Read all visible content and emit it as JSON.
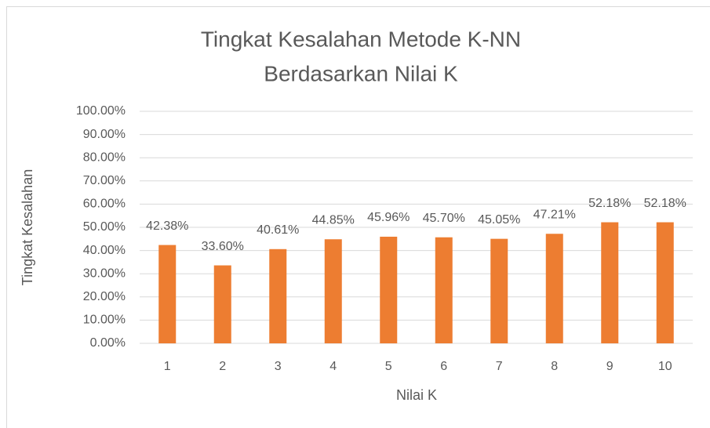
{
  "chart_data": {
    "type": "bar",
    "title": [
      "Tingkat Kesalahan Metode K-NN",
      "Berdasarkan Nilai K"
    ],
    "x_label": "Nilai K",
    "y_label": "Tingkat Kesalahan",
    "categories": [
      "1",
      "2",
      "3",
      "4",
      "5",
      "6",
      "7",
      "8",
      "9",
      "10"
    ],
    "values": [
      42.38,
      33.6,
      40.61,
      44.85,
      45.96,
      45.7,
      45.05,
      47.21,
      52.18,
      52.18
    ],
    "value_labels": [
      "42.38%",
      "33.60%",
      "40.61%",
      "44.85%",
      "45.96%",
      "45.70%",
      "45.05%",
      "47.21%",
      "52.18%",
      "52.18%"
    ],
    "color": "#ed7d31",
    "ylim": [
      0,
      100
    ],
    "yticks": [
      {
        "value": 0,
        "label": "0.00%"
      },
      {
        "value": 10,
        "label": "10.00%"
      },
      {
        "value": 20,
        "label": "20.00%"
      },
      {
        "value": 30,
        "label": "30.00%"
      },
      {
        "value": 40,
        "label": "40.00%"
      },
      {
        "value": 50,
        "label": "50.00%"
      },
      {
        "value": 60,
        "label": "60.00%"
      },
      {
        "value": 70,
        "label": "70.00%"
      },
      {
        "value": 80,
        "label": "80.00%"
      },
      {
        "value": 90,
        "label": "90.00%"
      },
      {
        "value": 100,
        "label": "100.00%"
      }
    ],
    "grid": true
  }
}
